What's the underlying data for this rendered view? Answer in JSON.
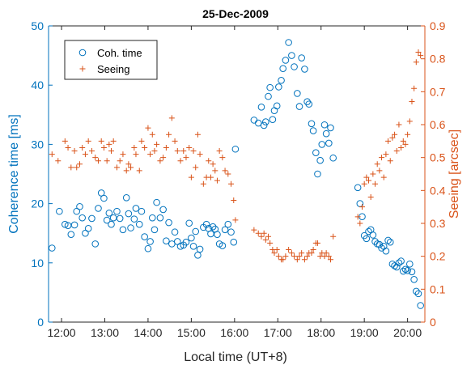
{
  "chart_data": {
    "type": "scatter",
    "title": "25-Dec-2009",
    "xlabel": "Local time (UT+8)",
    "ylabel_left": "Coherence time [ms]",
    "ylabel_right": "Seeing [arcsec]",
    "xlim": [
      11.7,
      20.4
    ],
    "ylim_left": [
      0,
      50
    ],
    "ylim_right": [
      0,
      0.9
    ],
    "x_ticks": [
      12,
      13,
      14,
      15,
      16,
      17,
      18,
      19,
      20
    ],
    "x_tick_labels": [
      "12:00",
      "13:00",
      "14:00",
      "15:00",
      "16:00",
      "17:00",
      "18:00",
      "19:00",
      "20:00"
    ],
    "y_left_ticks": [
      0,
      10,
      20,
      30,
      40,
      50
    ],
    "y_left_tick_labels": [
      "0",
      "10",
      "20",
      "30",
      "40",
      "50"
    ],
    "y_right_ticks": [
      0,
      0.1,
      0.2,
      0.3,
      0.4,
      0.5,
      0.6,
      0.7,
      0.8,
      0.9
    ],
    "y_right_tick_labels": [
      "0",
      "0.1",
      "0.2",
      "0.3",
      "0.4",
      "0.5",
      "0.6",
      "0.7",
      "0.8",
      "0.9"
    ],
    "legend_position": "top-left",
    "grid": false,
    "colors": {
      "left_axis": "#0072BD",
      "right_axis": "#D95319",
      "axes": "#262626"
    },
    "series": [
      {
        "name": "Coh. time",
        "axis": "left",
        "marker": "circle",
        "x": [
          11.78,
          11.95,
          12.08,
          12.15,
          12.22,
          12.3,
          12.35,
          12.42,
          12.48,
          12.55,
          12.62,
          12.7,
          12.78,
          12.85,
          12.92,
          12.98,
          13.05,
          13.1,
          13.15,
          13.2,
          13.28,
          13.35,
          13.42,
          13.5,
          13.55,
          13.6,
          13.68,
          13.72,
          13.8,
          13.85,
          13.92,
          14.0,
          14.05,
          14.1,
          14.15,
          14.2,
          14.28,
          14.35,
          14.42,
          14.48,
          14.55,
          14.62,
          14.68,
          14.75,
          14.82,
          14.88,
          14.95,
          15.0,
          15.05,
          15.1,
          15.15,
          15.2,
          15.28,
          15.35,
          15.4,
          15.45,
          15.5,
          15.55,
          15.6,
          15.65,
          15.72,
          15.78,
          15.85,
          15.92,
          15.98,
          16.02,
          16.45,
          16.55,
          16.62,
          16.68,
          16.72,
          16.78,
          16.82,
          16.88,
          16.92,
          16.98,
          17.02,
          17.08,
          17.12,
          17.18,
          17.25,
          17.32,
          17.38,
          17.45,
          17.5,
          17.55,
          17.62,
          17.68,
          17.72,
          17.78,
          17.82,
          17.88,
          17.92,
          17.98,
          18.02,
          18.08,
          18.12,
          18.18,
          18.22,
          18.28,
          18.85,
          18.9,
          18.95,
          19.0,
          19.05,
          19.1,
          19.15,
          19.2,
          19.25,
          19.3,
          19.35,
          19.4,
          19.45,
          19.5,
          19.55,
          19.6,
          19.65,
          19.7,
          19.75,
          19.8,
          19.85,
          19.9,
          19.95,
          20.0,
          20.05,
          20.1,
          20.15,
          20.2,
          20.25,
          20.3
        ],
        "y": [
          12.5,
          18.7,
          16.5,
          16.3,
          14.8,
          16.4,
          18.7,
          19.5,
          17.6,
          15.0,
          15.8,
          17.5,
          13.2,
          19.2,
          21.8,
          20.9,
          17.2,
          18.4,
          16.5,
          17.6,
          18.7,
          17.5,
          15.6,
          21.0,
          18.3,
          15.9,
          17.4,
          19.2,
          16.5,
          18.7,
          14.4,
          12.4,
          13.6,
          17.6,
          15.6,
          20.2,
          17.6,
          19.0,
          13.7,
          16.8,
          13.2,
          15.2,
          13.6,
          12.8,
          13.0,
          13.5,
          16.7,
          14.2,
          12.8,
          15.3,
          11.3,
          12.3,
          16.0,
          16.5,
          15.8,
          14.9,
          16.1,
          15.7,
          14.8,
          13.2,
          12.9,
          15.6,
          16.5,
          15.2,
          13.5,
          29.2,
          34.1,
          33.6,
          36.3,
          33.2,
          33.8,
          38.1,
          39.6,
          34.2,
          35.7,
          36.5,
          39.7,
          40.8,
          42.8,
          44.2,
          47.2,
          45.0,
          43.1,
          38.6,
          36.4,
          44.6,
          42.7,
          37.2,
          36.8,
          33.5,
          32.3,
          28.6,
          25.0,
          27.3,
          30.0,
          33.3,
          31.8,
          30.2,
          32.8,
          27.7,
          22.7,
          20.0,
          17.8,
          14.6,
          14.1,
          15.3,
          15.6,
          14.7,
          13.6,
          13.2,
          13.1,
          12.5,
          12.8,
          12.0,
          13.8,
          13.5,
          9.8,
          9.5,
          9.3,
          10.0,
          10.3,
          8.6,
          8.9,
          8.7,
          9.8,
          8.5,
          7.2,
          5.2,
          4.8,
          2.8
        ]
      },
      {
        "name": "Seeing",
        "axis": "right",
        "marker": "plus",
        "x": [
          11.78,
          11.92,
          12.08,
          12.15,
          12.22,
          12.3,
          12.35,
          12.42,
          12.48,
          12.55,
          12.62,
          12.7,
          12.78,
          12.85,
          12.92,
          12.98,
          13.05,
          13.1,
          13.15,
          13.2,
          13.28,
          13.35,
          13.42,
          13.5,
          13.55,
          13.6,
          13.68,
          13.72,
          13.8,
          13.85,
          13.92,
          14.0,
          14.05,
          14.1,
          14.15,
          14.2,
          14.28,
          14.35,
          14.42,
          14.48,
          14.55,
          14.62,
          14.68,
          14.75,
          14.82,
          14.88,
          14.95,
          15.0,
          15.05,
          15.1,
          15.15,
          15.2,
          15.28,
          15.35,
          15.4,
          15.45,
          15.5,
          15.55,
          15.6,
          15.65,
          15.72,
          15.78,
          15.85,
          15.92,
          15.98,
          16.02,
          16.45,
          16.55,
          16.62,
          16.68,
          16.72,
          16.78,
          16.82,
          16.88,
          16.92,
          16.98,
          17.02,
          17.08,
          17.12,
          17.18,
          17.25,
          17.32,
          17.38,
          17.45,
          17.5,
          17.55,
          17.62,
          17.68,
          17.72,
          17.78,
          17.82,
          17.88,
          17.92,
          17.98,
          18.02,
          18.08,
          18.12,
          18.18,
          18.22,
          18.28,
          18.85,
          18.9,
          18.95,
          19.0,
          19.05,
          19.1,
          19.15,
          19.2,
          19.25,
          19.3,
          19.35,
          19.4,
          19.45,
          19.5,
          19.55,
          19.6,
          19.65,
          19.7,
          19.75,
          19.8,
          19.85,
          19.9,
          19.95,
          20.0,
          20.05,
          20.1,
          20.15,
          20.2,
          20.25,
          20.3
        ],
        "y": [
          0.51,
          0.49,
          0.55,
          0.53,
          0.47,
          0.52,
          0.47,
          0.48,
          0.53,
          0.51,
          0.55,
          0.52,
          0.5,
          0.49,
          0.55,
          0.53,
          0.49,
          0.54,
          0.52,
          0.55,
          0.47,
          0.49,
          0.51,
          0.46,
          0.48,
          0.47,
          0.53,
          0.51,
          0.46,
          0.55,
          0.53,
          0.59,
          0.51,
          0.57,
          0.52,
          0.54,
          0.49,
          0.5,
          0.53,
          0.57,
          0.62,
          0.55,
          0.52,
          0.49,
          0.52,
          0.5,
          0.53,
          0.44,
          0.52,
          0.47,
          0.57,
          0.51,
          0.42,
          0.44,
          0.49,
          0.44,
          0.48,
          0.46,
          0.43,
          0.52,
          0.5,
          0.46,
          0.45,
          0.42,
          0.37,
          0.31,
          0.28,
          0.27,
          0.26,
          0.27,
          0.25,
          0.26,
          0.24,
          0.22,
          0.21,
          0.22,
          0.2,
          0.19,
          0.19,
          0.2,
          0.22,
          0.21,
          0.2,
          0.19,
          0.2,
          0.21,
          0.19,
          0.2,
          0.21,
          0.21,
          0.22,
          0.24,
          0.24,
          0.2,
          0.21,
          0.2,
          0.21,
          0.2,
          0.19,
          0.26,
          0.32,
          0.3,
          0.35,
          0.42,
          0.44,
          0.43,
          0.38,
          0.45,
          0.42,
          0.48,
          0.46,
          0.5,
          0.44,
          0.51,
          0.55,
          0.49,
          0.56,
          0.57,
          0.52,
          0.6,
          0.53,
          0.55,
          0.54,
          0.57,
          0.61,
          0.67,
          0.71,
          0.79,
          0.82,
          0.81
        ]
      }
    ]
  }
}
